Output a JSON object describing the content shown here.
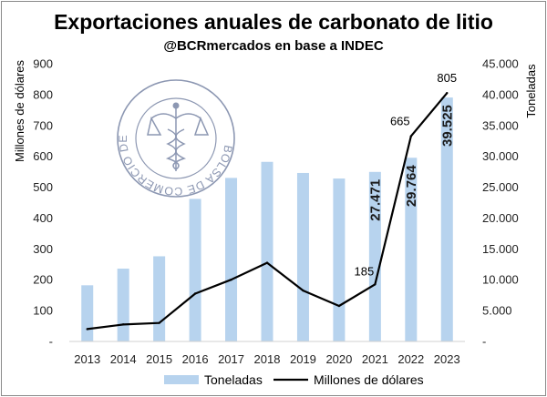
{
  "chart_data": {
    "type": "bar+line",
    "title": "Exportaciones anuales de carbonato de litio",
    "subtitle": "@BCRmercados en base a INDEC",
    "categories": [
      "2013",
      "2014",
      "2015",
      "2016",
      "2017",
      "2018",
      "2019",
      "2020",
      "2021",
      "2022",
      "2023"
    ],
    "series": [
      {
        "name": "Toneladas",
        "type": "bar",
        "axis": "right",
        "color": "#b7d3ee",
        "values": [
          9100,
          11800,
          13800,
          23100,
          26500,
          29100,
          27300,
          26400,
          27471,
          29764,
          39525
        ],
        "labels": {
          "8": "27.471",
          "9": "29.764",
          "10": "39.525"
        }
      },
      {
        "name": "Millones de dólares",
        "type": "line",
        "axis": "left",
        "color": "#000000",
        "values": [
          40,
          55,
          60,
          155,
          200,
          255,
          165,
          115,
          185,
          665,
          805
        ],
        "labels": {
          "8": "185",
          "9": "665",
          "10": "805"
        }
      }
    ],
    "y_left": {
      "label": "Millones de dólares",
      "min": 0,
      "max": 900,
      "ticks": [
        "-",
        "100",
        "200",
        "300",
        "400",
        "500",
        "600",
        "700",
        "800",
        "900"
      ]
    },
    "y_right": {
      "label": "Toneladas",
      "min": 0,
      "max": 45000,
      "ticks": [
        "-",
        "5.000",
        "10.000",
        "15.000",
        "20.000",
        "25.000",
        "30.000",
        "35.000",
        "40.000",
        "45.000"
      ]
    },
    "grid": false,
    "legend": "bottom"
  },
  "watermark": {
    "text": "BOLSA DE COMERCIO DE ROSARIO",
    "icon": "caduceus-seal-icon",
    "color": "#8c97b2"
  }
}
